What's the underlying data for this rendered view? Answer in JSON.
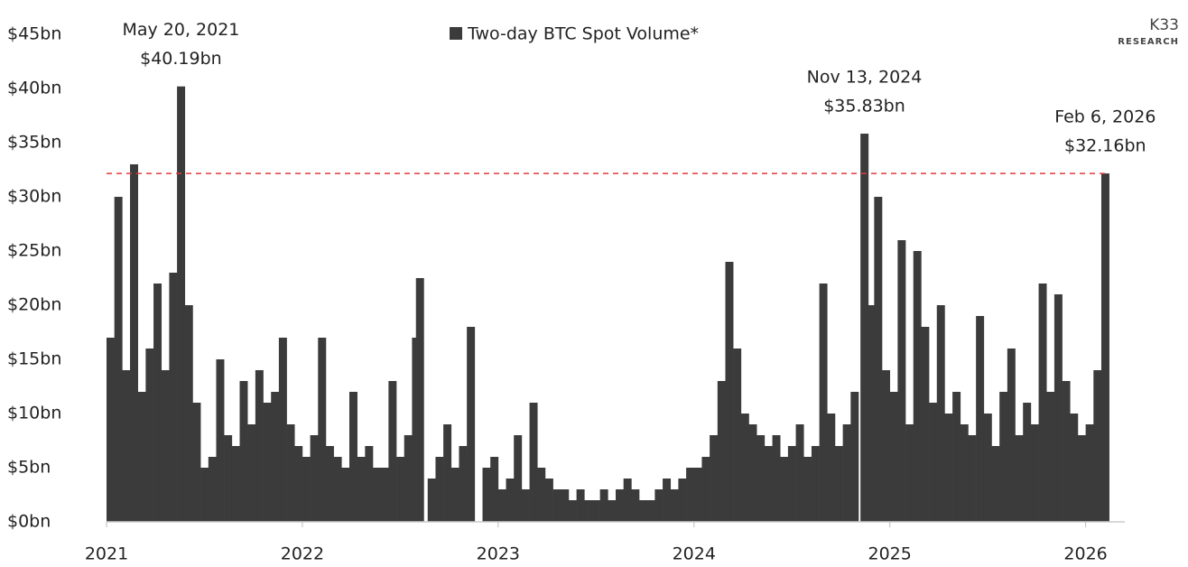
{
  "chart_data": {
    "type": "bar",
    "legend_position": "top",
    "series": [
      {
        "name": "Two-day BTC Spot Volume*",
        "color": "#3b3b3b",
        "values": [
          17,
          30,
          14,
          33,
          12,
          16,
          22,
          14,
          23,
          40.19,
          20,
          11,
          5,
          6,
          15,
          8,
          7,
          13,
          9,
          14,
          11,
          12,
          17,
          9,
          7,
          6,
          8,
          17,
          7,
          6,
          5,
          12,
          6,
          7,
          5,
          5,
          13,
          6,
          8,
          17,
          22.5,
          4,
          6,
          9,
          5,
          7,
          6,
          18,
          5,
          6,
          3,
          4,
          8,
          3,
          11,
          5,
          4,
          3,
          3,
          2,
          3,
          2,
          2,
          3,
          2,
          3,
          4,
          3,
          2,
          2,
          3,
          4,
          3,
          4,
          5,
          5,
          6,
          8,
          13,
          24,
          16,
          10,
          9,
          8,
          7,
          8,
          6,
          7,
          9,
          6,
          7,
          22,
          10,
          7,
          9,
          12,
          35.83,
          20,
          30,
          14,
          12,
          26,
          9,
          25,
          18,
          11,
          20,
          10,
          12,
          9,
          8,
          19,
          10,
          7,
          12,
          16,
          8,
          11,
          9,
          22,
          12,
          21,
          13,
          10,
          8,
          9,
          14,
          32.16
        ]
      }
    ],
    "x": [
      2021.02,
      2021.06,
      2021.1,
      2021.14,
      2021.18,
      2021.22,
      2021.26,
      2021.3,
      2021.34,
      2021.38,
      2021.42,
      2021.46,
      2021.5,
      2021.54,
      2021.58,
      2021.62,
      2021.66,
      2021.7,
      2021.74,
      2021.78,
      2021.82,
      2021.86,
      2021.9,
      2021.94,
      2021.98,
      2022.02,
      2022.06,
      2022.1,
      2022.14,
      2022.18,
      2022.22,
      2022.26,
      2022.3,
      2022.34,
      2022.38,
      2022.42,
      2022.46,
      2022.5,
      2022.54,
      2022.58,
      2022.6,
      2022.66,
      2022.7,
      2022.74,
      2022.78,
      2022.82,
      2022.84,
      2022.86,
      2022.94,
      2022.98,
      2023.02,
      2023.06,
      2023.1,
      2023.14,
      2023.18,
      2023.22,
      2023.26,
      2023.3,
      2023.34,
      2023.38,
      2023.42,
      2023.46,
      2023.5,
      2023.54,
      2023.58,
      2023.62,
      2023.66,
      2023.7,
      2023.74,
      2023.78,
      2023.82,
      2023.86,
      2023.9,
      2023.94,
      2023.98,
      2024.02,
      2024.06,
      2024.1,
      2024.14,
      2024.18,
      2024.22,
      2024.26,
      2024.3,
      2024.34,
      2024.38,
      2024.42,
      2024.46,
      2024.5,
      2024.54,
      2024.58,
      2024.62,
      2024.66,
      2024.7,
      2024.74,
      2024.78,
      2024.82,
      2024.87,
      2024.9,
      2024.94,
      2024.98,
      2025.02,
      2025.06,
      2025.1,
      2025.14,
      2025.18,
      2025.22,
      2025.26,
      2025.3,
      2025.34,
      2025.38,
      2025.42,
      2025.46,
      2025.5,
      2025.54,
      2025.58,
      2025.62,
      2025.66,
      2025.7,
      2025.74,
      2025.78,
      2025.82,
      2025.86,
      2025.9,
      2025.94,
      2025.98,
      2026.02,
      2026.06,
      2026.1
    ],
    "xlim": [
      2021,
      2026.2
    ],
    "xticks": [
      2021,
      2022,
      2023,
      2024,
      2025,
      2026
    ],
    "ylim": [
      0,
      45
    ],
    "yticks": [
      {
        "value": 0,
        "label": "$0bn"
      },
      {
        "value": 5,
        "label": "$5bn"
      },
      {
        "value": 10,
        "label": "$10bn"
      },
      {
        "value": 15,
        "label": "$15bn"
      },
      {
        "value": 20,
        "label": "$20bn"
      },
      {
        "value": 25,
        "label": "$25bn"
      },
      {
        "value": 30,
        "label": "$30bn"
      },
      {
        "value": 35,
        "label": "$35bn"
      },
      {
        "value": 40,
        "label": "$40bn"
      },
      {
        "value": 45,
        "label": "$45bn"
      }
    ],
    "annotations": [
      {
        "label": "May 20, 2021",
        "x": 2021.38,
        "value": 40.19,
        "value_label": "$40.19bn"
      },
      {
        "label": "Nov 13, 2024",
        "x": 2024.87,
        "value": 35.83,
        "value_label": "$35.83bn"
      },
      {
        "label": "Feb 6, 2026",
        "x": 2026.1,
        "value": 32.16,
        "value_label": "$32.16bn"
      }
    ],
    "reference_line_color": "#e03b3b",
    "logo": {
      "text": "K33",
      "subtext": "RESEARCH"
    }
  }
}
